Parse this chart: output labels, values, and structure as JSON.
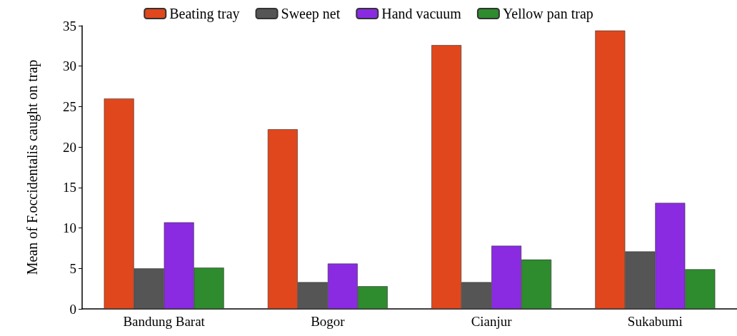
{
  "chart_data": {
    "type": "bar",
    "ylabel": "Mean of F.occidentalis caught on trap",
    "categories": [
      "Bandung Barat",
      "Bogor",
      "Cianjur",
      "Sukabumi"
    ],
    "series": [
      {
        "name": "Beating tray",
        "color": "#e0471c",
        "values": [
          26.0,
          22.2,
          32.6,
          34.4
        ]
      },
      {
        "name": "Sweep net",
        "color": "#555555",
        "values": [
          5.0,
          3.3,
          3.3,
          7.1
        ]
      },
      {
        "name": "Hand vacuum",
        "color": "#8a2be2",
        "values": [
          10.7,
          5.6,
          7.8,
          13.1
        ]
      },
      {
        "name": "Yellow pan trap",
        "color": "#2e8b2e",
        "values": [
          5.1,
          2.8,
          6.1,
          4.9
        ]
      }
    ],
    "ylim": [
      0,
      35
    ],
    "yticks": [
      0,
      5,
      10,
      15,
      20,
      25,
      30,
      35
    ],
    "grid": false,
    "legend": "top"
  }
}
